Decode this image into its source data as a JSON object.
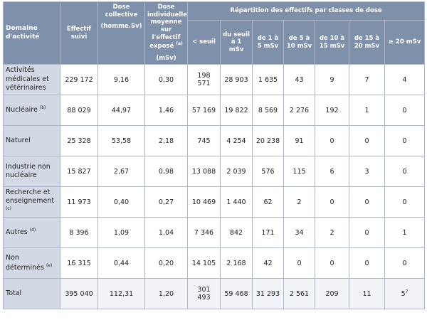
{
  "table": {
    "header": {
      "domain": "Domaine d'activité",
      "effectif": "Effectif suivi",
      "dose_collective": "Dose collective",
      "dose_collective_unit": "(homme.Sv)",
      "dose_individuelle": "Dose individuelle moyenne sur l'effectif exposé",
      "dose_individuelle_note": "(a)",
      "dose_individuelle_unit": "(mSv)",
      "repartition": "Répartition des effectifs par classes de dose",
      "classes": [
        "< seuil",
        "du seuil à 1 mSv",
        "de 1 à 5 mSv",
        "de 5 à 10 mSv",
        "de 10 à 15 mSv",
        "de 15 à 20 mSv",
        "≥ 20 mSv"
      ]
    },
    "rows": [
      {
        "domain": "Activités médicales et vétérinaires",
        "cells": [
          "229 172",
          "9,16",
          "0,30",
          "198 571",
          "28 903",
          "1 635",
          "43",
          "9",
          "7",
          "4"
        ]
      },
      {
        "domain": "Nucléaire",
        "note": "(b)",
        "cells": [
          "88 029",
          "44,97",
          "1,46",
          "57 169",
          "19 822",
          "8 569",
          "2 276",
          "192",
          "1",
          "0"
        ]
      },
      {
        "domain": "Naturel",
        "cells": [
          "25 328",
          "53,58",
          "2,18",
          "745",
          "4 254",
          "20 238",
          "91",
          "0",
          "0",
          "0"
        ]
      },
      {
        "domain": "Industrie non nucléaire",
        "cells": [
          "15 827",
          "2,67",
          "0,98",
          "13 088",
          "2 039",
          "576",
          "115",
          "6",
          "3",
          "0"
        ]
      },
      {
        "domain": "Recherche et enseignement",
        "note": "(c)",
        "cells": [
          "11 973",
          "0,40",
          "0,27",
          "10 469",
          "1 440",
          "62",
          "2",
          "0",
          "0",
          "0"
        ]
      },
      {
        "domain": "Autres",
        "note": "(d)",
        "cells": [
          "8 396",
          "1,09",
          "1,04",
          "7 346",
          "842",
          "171",
          "34",
          "2",
          "0",
          "1"
        ]
      },
      {
        "domain": "Non déterminés",
        "note": "(e)",
        "cells": [
          "16 315",
          "0,44",
          "0,20",
          "14 105",
          "2 168",
          "42",
          "0",
          "0",
          "0",
          "0"
        ]
      },
      {
        "domain": "Total",
        "cells": [
          "395 040",
          "112,31",
          "1,20",
          "301 493",
          "59 468",
          "31 293",
          "2 561",
          "209",
          "11",
          "5"
        ],
        "cell_notes": {
          "9": "7"
        }
      }
    ]
  }
}
